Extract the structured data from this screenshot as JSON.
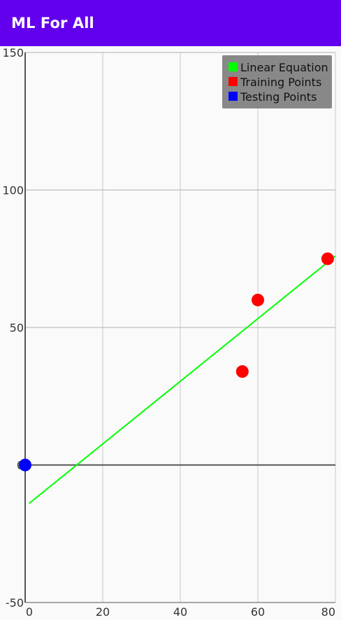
{
  "app": {
    "title": "ML For All"
  },
  "chart_data": {
    "type": "scatter",
    "xlim": [
      0,
      80
    ],
    "ylim": [
      -50,
      150
    ],
    "x_ticks": [
      0,
      20,
      40,
      60,
      80
    ],
    "y_ticks": [
      -50,
      0,
      50,
      100,
      150
    ],
    "x_tick_labels": [
      "0",
      "20",
      "40",
      "60",
      "80"
    ],
    "y_tick_labels": [
      "-50",
      "0",
      "50",
      "100",
      "150"
    ],
    "grid": true,
    "legend_position": "top-right",
    "legend_background": "#888888",
    "series": [
      {
        "name": "Linear Equation",
        "kind": "line",
        "color": "#00ff00",
        "x": [
          1,
          80
        ],
        "y": [
          -14,
          76
        ]
      },
      {
        "name": "Training Points",
        "kind": "scatter",
        "color": "#ff0000",
        "x": [
          56,
          60,
          78
        ],
        "y": [
          34,
          60,
          75
        ]
      },
      {
        "name": "Testing Points",
        "kind": "scatter",
        "color": "#0000ff",
        "x": [
          0
        ],
        "y": [
          0
        ]
      }
    ]
  }
}
